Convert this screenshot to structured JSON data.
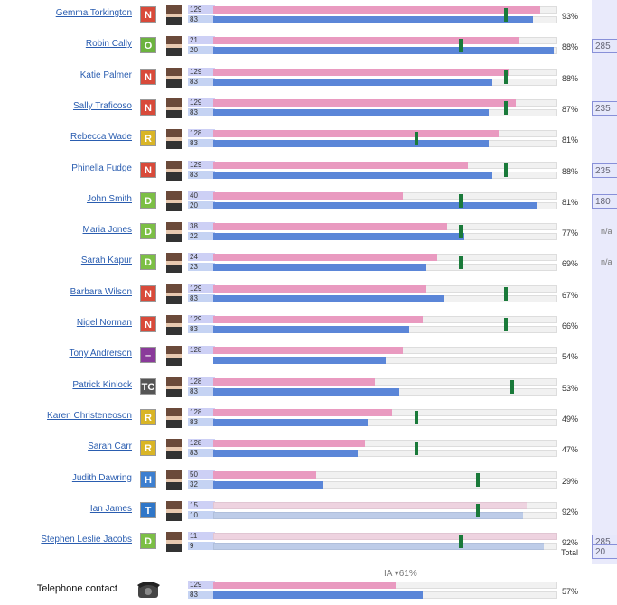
{
  "rows": [
    {
      "name": "Gemma Torkington",
      "badge": "N",
      "top": "129",
      "bottom": "83",
      "pct": "93%",
      "pink": 95,
      "blue": 93,
      "target": 85
    },
    {
      "name": "Robin Cally",
      "badge": "O",
      "top": "21",
      "bottom": "20",
      "pct": "88%",
      "side": "285",
      "pink": 89,
      "blue": 99,
      "target": 72
    },
    {
      "name": "Katie Palmer",
      "badge": "N",
      "top": "129",
      "bottom": "83",
      "pct": "88%",
      "pink": 86,
      "blue": 81,
      "target": 85
    },
    {
      "name": "Sally Traficoso",
      "badge": "N",
      "top": "129",
      "bottom": "83",
      "pct": "87%",
      "side": "235",
      "pink": 88,
      "blue": 80,
      "target": 85
    },
    {
      "name": "Rebecca Wade",
      "badge": "R",
      "top": "128",
      "bottom": "83",
      "pct": "81%",
      "pink": 83,
      "blue": 80,
      "target": 59
    },
    {
      "name": "Phinella Fudge",
      "badge": "N",
      "top": "129",
      "bottom": "83",
      "pct": "88%",
      "side": "235",
      "pink": 74,
      "blue": 81,
      "target": 85
    },
    {
      "name": "John Smith",
      "badge": "D",
      "top": "40",
      "bottom": "20",
      "pct": "81%",
      "side": "180",
      "pink": 55,
      "blue": 94,
      "target": 72
    },
    {
      "name": "Maria Jones",
      "badge": "D",
      "top": "38",
      "bottom": "22",
      "pct": "77%",
      "side": "n/a",
      "pink": 68,
      "blue": 73,
      "target": 72
    },
    {
      "name": "Sarah Kapur",
      "badge": "D",
      "top": "24",
      "bottom": "23",
      "pct": "69%",
      "side": "n/a",
      "pink": 65,
      "blue": 62,
      "target": 72
    },
    {
      "name": "Barbara Wilson",
      "badge": "N",
      "top": "129",
      "bottom": "83",
      "pct": "67%",
      "pink": 62,
      "blue": 67,
      "target": 85
    },
    {
      "name": "Nigel Norman",
      "badge": "N",
      "top": "129",
      "bottom": "83",
      "pct": "66%",
      "pink": 61,
      "blue": 57,
      "target": 85
    },
    {
      "name": "Tony Andrerson",
      "badge": "–",
      "top": "128",
      "pct": "54%",
      "pink": 55,
      "blue": 50
    },
    {
      "name": "Patrick Kinlock",
      "badge": "TC",
      "top": "128",
      "bottom": "83",
      "pct": "53%",
      "pink": 47,
      "blue": 54,
      "target": 87
    },
    {
      "name": "Karen Christeneoson",
      "badge": "R",
      "top": "128",
      "bottom": "83",
      "pct": "49%",
      "pink": 52,
      "blue": 45,
      "target": 59
    },
    {
      "name": "Sarah Carr",
      "badge": "R",
      "top": "128",
      "bottom": "83",
      "pct": "47%",
      "pink": 44,
      "blue": 42,
      "target": 59
    },
    {
      "name": "Judith Dawring",
      "badge": "H",
      "top": "50",
      "bottom": "32",
      "pct": "29%",
      "pink": 30,
      "blue": 32,
      "target": 77
    },
    {
      "name": "Ian James",
      "badge": "T",
      "top": "15",
      "bottom": "10",
      "pct": "92%",
      "pink": 91,
      "blue": 90,
      "target": 77,
      "faded": true
    },
    {
      "name": "Stephen Leslie Jacobs",
      "badge": "D",
      "top": "11",
      "bottom": "9",
      "pct": "92%",
      "side": "285",
      "pink": 100,
      "blue": 96,
      "target": 72,
      "faded": true
    }
  ],
  "total": {
    "label": "Total",
    "value": "20"
  },
  "telephone": {
    "name": "Telephone contact",
    "top": "129",
    "bottom": "83",
    "pct": "57%",
    "annotation": "IA ▾61%",
    "pink": 53,
    "blue": 61
  }
}
